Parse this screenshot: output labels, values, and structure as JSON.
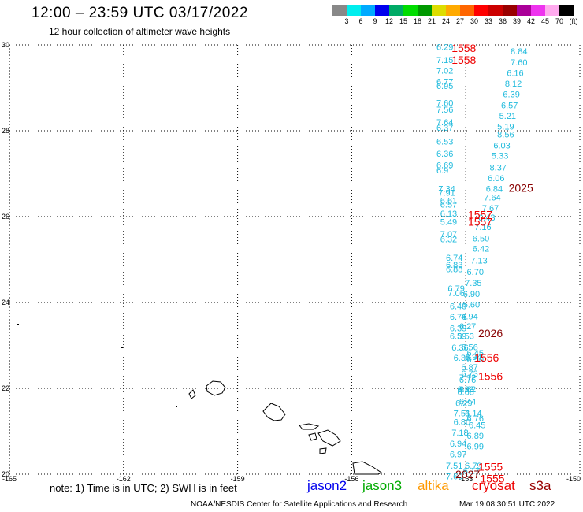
{
  "header": {
    "title": "12:00 – 23:59 UTC 03/17/2022",
    "subtitle": "12 hour collection of altimeter wave heights"
  },
  "scale": {
    "colors": [
      "#888888",
      "#00eeee",
      "#00aaff",
      "#0000ee",
      "#00aa66",
      "#00dd00",
      "#009900",
      "#dddd00",
      "#ffaa00",
      "#ff6600",
      "#ff0000",
      "#cc0000",
      "#990000",
      "#aa0099",
      "#ee33ee",
      "#ffaaee",
      "#000000"
    ],
    "labels": [
      "3",
      "6",
      "9",
      "12",
      "15",
      "18",
      "21",
      "24",
      "27",
      "30",
      "33",
      "36",
      "39",
      "42",
      "45",
      "70",
      "(ft)"
    ]
  },
  "axes": {
    "lon_ticks": [
      "-165",
      "-162",
      "-159",
      "-156",
      "-153",
      "-150"
    ],
    "lat_ticks": [
      "30",
      "28",
      "26",
      "24",
      "22",
      "20"
    ]
  },
  "chart_data": {
    "type": "scatter",
    "x_range": [
      -165,
      -150
    ],
    "y_range": [
      20,
      30
    ],
    "grid": true,
    "units": "ft",
    "wave_color": "#22bbdd",
    "pass_label_colors": {
      "dark": "#880000",
      "red": "#ee0000"
    },
    "track_a": [
      {
        "lon": -153.55,
        "lat": 29.95,
        "value": "6.29"
      },
      {
        "lon": -153.55,
        "lat": 29.65,
        "value": "7.15"
      },
      {
        "lon": -153.55,
        "lat": 29.4,
        "value": "7.02"
      },
      {
        "lon": -153.55,
        "lat": 29.15,
        "value": "6.77"
      },
      {
        "lon": -153.55,
        "lat": 29.05,
        "value": "6.95"
      },
      {
        "lon": -153.55,
        "lat": 28.65,
        "value": "7.60"
      },
      {
        "lon": -153.55,
        "lat": 28.5,
        "value": "7.56"
      },
      {
        "lon": -153.55,
        "lat": 28.2,
        "value": "7.64"
      },
      {
        "lon": -153.55,
        "lat": 28.07,
        "value": "6.37"
      },
      {
        "lon": -153.55,
        "lat": 27.75,
        "value": "6.53"
      },
      {
        "lon": -153.55,
        "lat": 27.47,
        "value": "6.36"
      },
      {
        "lon": -153.55,
        "lat": 27.2,
        "value": "6.69"
      },
      {
        "lon": -153.55,
        "lat": 27.08,
        "value": "6.91"
      },
      {
        "lon": -153.5,
        "lat": 26.65,
        "value": "7.34"
      },
      {
        "lon": -153.5,
        "lat": 26.56,
        "value": "7.91"
      },
      {
        "lon": -153.45,
        "lat": 26.38,
        "value": "6.61"
      },
      {
        "lon": -153.45,
        "lat": 26.28,
        "value": "6.57"
      },
      {
        "lon": -153.45,
        "lat": 26.07,
        "value": "6.13"
      },
      {
        "lon": -153.45,
        "lat": 25.88,
        "value": "5.49"
      },
      {
        "lon": -153.45,
        "lat": 25.6,
        "value": "7.07"
      },
      {
        "lon": -153.45,
        "lat": 25.48,
        "value": "6.32"
      },
      {
        "lon": -153.3,
        "lat": 25.05,
        "value": "6.74"
      },
      {
        "lon": -153.3,
        "lat": 24.88,
        "value": "6.83"
      },
      {
        "lon": -153.3,
        "lat": 24.78,
        "value": "6.88"
      },
      {
        "lon": -153.25,
        "lat": 24.33,
        "value": "6.79"
      },
      {
        "lon": -153.25,
        "lat": 24.22,
        "value": "7.06"
      },
      {
        "lon": -153.2,
        "lat": 23.92,
        "value": "6.48"
      },
      {
        "lon": -153.2,
        "lat": 23.67,
        "value": "6.76"
      },
      {
        "lon": -153.2,
        "lat": 23.4,
        "value": "6.39"
      },
      {
        "lon": -153.2,
        "lat": 23.22,
        "value": "6.59"
      },
      {
        "lon": -153.15,
        "lat": 22.95,
        "value": "6.36"
      },
      {
        "lon": -153.1,
        "lat": 22.72,
        "value": "6.36"
      },
      {
        "lon": -152.75,
        "lat": 22.83,
        "value": "6.45"
      },
      {
        "lon": -152.75,
        "lat": 22.68,
        "value": "6.50"
      },
      {
        "lon": -152.9,
        "lat": 22.5,
        "value": "6.87"
      },
      {
        "lon": -152.9,
        "lat": 22.35,
        "value": "6.73"
      },
      {
        "lon": -152.95,
        "lat": 22.26,
        "value": "7.12"
      },
      {
        "lon": -153.0,
        "lat": 21.98,
        "value": "6.93"
      },
      {
        "lon": -153.0,
        "lat": 21.92,
        "value": "6.68"
      },
      {
        "lon": -153.05,
        "lat": 21.66,
        "value": "6.29"
      },
      {
        "lon": -153.1,
        "lat": 21.42,
        "value": "7.51"
      },
      {
        "lon": -153.1,
        "lat": 21.22,
        "value": "6.80"
      },
      {
        "lon": -153.15,
        "lat": 20.97,
        "value": "7.18"
      },
      {
        "lon": -153.2,
        "lat": 20.72,
        "value": "6.94"
      },
      {
        "lon": -153.2,
        "lat": 20.47,
        "value": "6.97"
      },
      {
        "lon": -153.3,
        "lat": 20.2,
        "value": "7.51"
      },
      {
        "lon": -153.3,
        "lat": 19.95,
        "value": "7.60"
      }
    ],
    "track_b": [
      {
        "lon": -151.6,
        "lat": 29.85,
        "value": "8.84"
      },
      {
        "lon": -151.6,
        "lat": 29.6,
        "value": "7.60"
      },
      {
        "lon": -151.7,
        "lat": 29.35,
        "value": "6.16"
      },
      {
        "lon": -151.75,
        "lat": 29.1,
        "value": "8.12"
      },
      {
        "lon": -151.8,
        "lat": 28.85,
        "value": "6.39"
      },
      {
        "lon": -151.85,
        "lat": 28.6,
        "value": "6.57"
      },
      {
        "lon": -151.9,
        "lat": 28.35,
        "value": "5.21"
      },
      {
        "lon": -151.95,
        "lat": 28.1,
        "value": "5.19"
      },
      {
        "lon": -151.95,
        "lat": 27.92,
        "value": "8.56"
      },
      {
        "lon": -152.05,
        "lat": 27.66,
        "value": "6.03"
      },
      {
        "lon": -152.1,
        "lat": 27.42,
        "value": "5.33"
      },
      {
        "lon": -152.15,
        "lat": 27.15,
        "value": "8.37"
      },
      {
        "lon": -152.2,
        "lat": 26.9,
        "value": "6.06"
      },
      {
        "lon": -152.25,
        "lat": 26.65,
        "value": "6.84"
      },
      {
        "lon": -152.3,
        "lat": 26.45,
        "value": "7.64"
      },
      {
        "lon": -152.35,
        "lat": 26.2,
        "value": "7.67"
      },
      {
        "lon": -152.45,
        "lat": 25.98,
        "value": "6.43"
      },
      {
        "lon": -152.55,
        "lat": 25.76,
        "value": "7.16"
      },
      {
        "lon": -152.6,
        "lat": 25.5,
        "value": "6.50"
      },
      {
        "lon": -152.6,
        "lat": 25.26,
        "value": "6.42"
      },
      {
        "lon": -152.65,
        "lat": 24.98,
        "value": "7.13"
      },
      {
        "lon": -152.75,
        "lat": 24.72,
        "value": "6.70"
      },
      {
        "lon": -152.8,
        "lat": 24.46,
        "value": "7.35"
      },
      {
        "lon": -152.85,
        "lat": 24.2,
        "value": "6.90"
      },
      {
        "lon": -152.85,
        "lat": 23.95,
        "value": "5.60"
      },
      {
        "lon": -152.9,
        "lat": 23.68,
        "value": "4.94"
      },
      {
        "lon": -152.95,
        "lat": 23.45,
        "value": "6.27"
      },
      {
        "lon": -153.0,
        "lat": 23.22,
        "value": "3.53"
      },
      {
        "lon": -152.9,
        "lat": 22.96,
        "value": "6.56"
      },
      {
        "lon": -152.8,
        "lat": 22.73,
        "value": "6.94"
      },
      {
        "lon": -152.95,
        "lat": 22.2,
        "value": "6.76"
      },
      {
        "lon": -152.95,
        "lat": 21.98,
        "value": "6.62"
      },
      {
        "lon": -152.95,
        "lat": 21.7,
        "value": "6.44"
      },
      {
        "lon": -152.8,
        "lat": 21.42,
        "value": "6.14"
      },
      {
        "lon": -152.75,
        "lat": 21.3,
        "value": "6.76"
      },
      {
        "lon": -152.7,
        "lat": 21.15,
        "value": "6.45"
      },
      {
        "lon": -152.75,
        "lat": 20.9,
        "value": "6.89"
      },
      {
        "lon": -152.75,
        "lat": 20.65,
        "value": "6.99"
      },
      {
        "lon": -152.8,
        "lat": 20.2,
        "value": "6.79"
      },
      {
        "lon": -152.85,
        "lat": 20.08,
        "value": "6.17"
      }
    ],
    "pass_labels": [
      {
        "lon": -153.05,
        "lat": 29.93,
        "text": "1558",
        "tone": "red"
      },
      {
        "lon": -153.05,
        "lat": 29.65,
        "text": "1558",
        "tone": "red"
      },
      {
        "lon": -151.55,
        "lat": 26.67,
        "text": "2025",
        "tone": "dark"
      },
      {
        "lon": -152.62,
        "lat": 26.05,
        "text": "1557",
        "tone": "red"
      },
      {
        "lon": -152.62,
        "lat": 25.88,
        "text": "1557",
        "tone": "red"
      },
      {
        "lon": -152.35,
        "lat": 23.28,
        "text": "2026",
        "tone": "dark"
      },
      {
        "lon": -152.45,
        "lat": 22.72,
        "text": "1556",
        "tone": "red"
      },
      {
        "lon": -152.35,
        "lat": 22.28,
        "text": "1556",
        "tone": "red"
      },
      {
        "lon": -152.35,
        "lat": 20.17,
        "text": "1555",
        "tone": "red"
      },
      {
        "lon": -152.3,
        "lat": 19.9,
        "text": "1555",
        "tone": "red"
      },
      {
        "lon": -152.95,
        "lat": 20.0,
        "text": "2027",
        "tone": "dark"
      }
    ]
  },
  "footer": {
    "note": "note:  1) Time is in UTC;  2) SWH is in feet",
    "legend": [
      {
        "name": "jason2",
        "color": "#0000ee"
      },
      {
        "name": "jason3",
        "color": "#00aa00"
      },
      {
        "name": "altika",
        "color": "#ff9900"
      },
      {
        "name": "cryosat",
        "color": "#ee0000"
      },
      {
        "name": "s3a",
        "color": "#990000"
      }
    ],
    "credit": "NOAA/NESDIS Center for Satellite Applications and Research",
    "timestamp": "Mar 19 08:30:51 UTC 2022"
  }
}
